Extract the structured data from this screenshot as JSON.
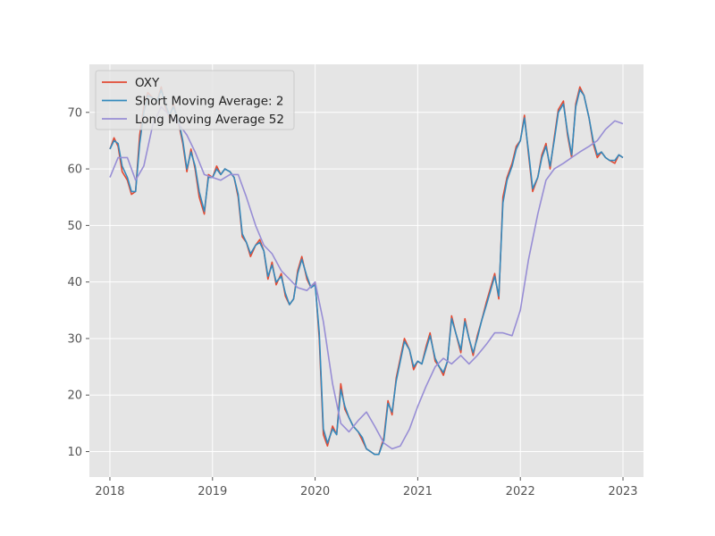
{
  "chart_data": {
    "type": "line",
    "title": "",
    "xlabel": "",
    "ylabel": "",
    "x_axis": "year",
    "xlim": [
      2017.8,
      2023.2
    ],
    "ylim": [
      5.5,
      78.5
    ],
    "x_ticks": [
      "2018",
      "2019",
      "2020",
      "2021",
      "2022",
      "2023"
    ],
    "y_ticks": [
      "10",
      "20",
      "30",
      "40",
      "50",
      "60",
      "70"
    ],
    "grid": true,
    "legend": "upper-left",
    "background": "#e5e5e5",
    "grid_color": "#ffffff",
    "series": [
      {
        "name": "OXY",
        "color": "#e24a33",
        "x": [
          2018.0,
          2018.04,
          2018.08,
          2018.12,
          2018.17,
          2018.21,
          2018.25,
          2018.29,
          2018.33,
          2018.37,
          2018.42,
          2018.46,
          2018.5,
          2018.54,
          2018.58,
          2018.62,
          2018.67,
          2018.71,
          2018.75,
          2018.79,
          2018.83,
          2018.87,
          2018.92,
          2018.96,
          2019.0,
          2019.04,
          2019.08,
          2019.12,
          2019.17,
          2019.21,
          2019.25,
          2019.29,
          2019.33,
          2019.37,
          2019.42,
          2019.46,
          2019.5,
          2019.54,
          2019.58,
          2019.62,
          2019.67,
          2019.71,
          2019.75,
          2019.79,
          2019.83,
          2019.87,
          2019.92,
          2019.96,
          2020.0,
          2020.04,
          2020.08,
          2020.12,
          2020.17,
          2020.21,
          2020.25,
          2020.29,
          2020.33,
          2020.37,
          2020.42,
          2020.46,
          2020.5,
          2020.54,
          2020.58,
          2020.62,
          2020.67,
          2020.71,
          2020.75,
          2020.79,
          2020.83,
          2020.87,
          2020.92,
          2020.96,
          2021.0,
          2021.04,
          2021.08,
          2021.12,
          2021.17,
          2021.21,
          2021.25,
          2021.29,
          2021.33,
          2021.37,
          2021.42,
          2021.46,
          2021.5,
          2021.54,
          2021.58,
          2021.62,
          2021.67,
          2021.71,
          2021.75,
          2021.79,
          2021.83,
          2021.87,
          2021.92,
          2021.96,
          2022.0,
          2022.04,
          2022.08,
          2022.12,
          2022.17,
          2022.21,
          2022.25,
          2022.29,
          2022.33,
          2022.37,
          2022.42,
          2022.46,
          2022.5,
          2022.54,
          2022.58,
          2022.62,
          2022.67,
          2022.71,
          2022.75,
          2022.79,
          2022.83,
          2022.87,
          2022.92,
          2022.96,
          2023.0
        ],
        "values": [
          63.5,
          65.5,
          64.0,
          59.5,
          58.0,
          55.5,
          56.0,
          66.0,
          71.0,
          73.5,
          72.5,
          72.0,
          74.5,
          71.0,
          69.0,
          71.5,
          68.0,
          64.5,
          59.5,
          63.5,
          60.0,
          55.0,
          52.0,
          59.0,
          58.5,
          60.5,
          59.0,
          60.0,
          59.5,
          58.5,
          55.0,
          48.0,
          47.0,
          44.5,
          46.5,
          47.5,
          45.5,
          40.5,
          43.5,
          39.5,
          41.5,
          37.5,
          36.0,
          37.0,
          42.0,
          44.5,
          40.5,
          39.0,
          40.0,
          30.0,
          13.0,
          11.0,
          14.5,
          13.0,
          22.0,
          17.5,
          16.0,
          14.5,
          13.5,
          12.0,
          10.5,
          10.0,
          9.5,
          9.5,
          12.5,
          19.0,
          16.5,
          23.0,
          26.5,
          30.0,
          28.0,
          24.5,
          26.0,
          25.5,
          28.5,
          31.0,
          26.0,
          25.0,
          23.5,
          26.0,
          34.0,
          31.0,
          27.5,
          33.5,
          30.0,
          27.0,
          30.5,
          33.0,
          36.5,
          39.0,
          41.5,
          37.0,
          55.0,
          58.5,
          61.0,
          64.0,
          65.0,
          69.5,
          62.5,
          56.0,
          58.5,
          62.5,
          64.5,
          60.0,
          65.5,
          70.5,
          72.0,
          66.0,
          62.0,
          71.5,
          74.5,
          73.0,
          69.0,
          64.5,
          62.0,
          63.0,
          62.0,
          61.5,
          61.0,
          62.5,
          62.0
        ]
      },
      {
        "name": "Short Moving Average: 2",
        "color": "#348abd",
        "x": [
          2018.0,
          2018.04,
          2018.08,
          2018.12,
          2018.17,
          2018.21,
          2018.25,
          2018.29,
          2018.33,
          2018.37,
          2018.42,
          2018.46,
          2018.5,
          2018.54,
          2018.58,
          2018.62,
          2018.67,
          2018.71,
          2018.75,
          2018.79,
          2018.83,
          2018.87,
          2018.92,
          2018.96,
          2019.0,
          2019.04,
          2019.08,
          2019.12,
          2019.17,
          2019.21,
          2019.25,
          2019.29,
          2019.33,
          2019.37,
          2019.42,
          2019.46,
          2019.5,
          2019.54,
          2019.58,
          2019.62,
          2019.67,
          2019.71,
          2019.75,
          2019.79,
          2019.83,
          2019.87,
          2019.92,
          2019.96,
          2020.0,
          2020.04,
          2020.08,
          2020.12,
          2020.17,
          2020.21,
          2020.25,
          2020.29,
          2020.33,
          2020.37,
          2020.42,
          2020.46,
          2020.5,
          2020.54,
          2020.58,
          2020.62,
          2020.67,
          2020.71,
          2020.75,
          2020.79,
          2020.83,
          2020.87,
          2020.92,
          2020.96,
          2021.0,
          2021.04,
          2021.08,
          2021.12,
          2021.17,
          2021.21,
          2021.25,
          2021.29,
          2021.33,
          2021.37,
          2021.42,
          2021.46,
          2021.5,
          2021.54,
          2021.58,
          2021.62,
          2021.67,
          2021.71,
          2021.75,
          2021.79,
          2021.83,
          2021.87,
          2021.92,
          2021.96,
          2022.0,
          2022.04,
          2022.08,
          2022.12,
          2022.17,
          2022.21,
          2022.25,
          2022.29,
          2022.33,
          2022.37,
          2022.42,
          2022.46,
          2022.5,
          2022.54,
          2022.58,
          2022.62,
          2022.67,
          2022.71,
          2022.75,
          2022.79,
          2022.83,
          2022.87,
          2022.92,
          2022.96,
          2023.0
        ],
        "values": [
          63.5,
          65.0,
          64.5,
          60.5,
          58.5,
          56.0,
          56.0,
          64.5,
          70.0,
          73.0,
          72.5,
          72.0,
          74.0,
          71.5,
          69.5,
          71.0,
          68.5,
          65.0,
          60.0,
          63.0,
          60.5,
          56.0,
          52.5,
          58.5,
          58.5,
          60.0,
          59.0,
          60.0,
          59.5,
          58.5,
          55.5,
          48.5,
          47.0,
          45.0,
          46.5,
          47.0,
          45.5,
          41.0,
          43.0,
          40.0,
          41.0,
          38.0,
          36.0,
          37.0,
          41.5,
          44.0,
          41.0,
          39.0,
          39.5,
          31.0,
          14.0,
          11.5,
          14.0,
          13.0,
          21.0,
          18.0,
          16.0,
          14.5,
          13.5,
          12.5,
          10.5,
          10.0,
          9.5,
          9.5,
          12.0,
          18.5,
          17.0,
          22.5,
          26.0,
          29.5,
          28.0,
          25.0,
          26.0,
          25.5,
          28.0,
          30.5,
          26.5,
          25.0,
          24.0,
          26.0,
          33.5,
          31.0,
          28.0,
          33.0,
          30.0,
          27.5,
          30.0,
          33.0,
          36.0,
          38.5,
          41.0,
          37.5,
          54.0,
          58.0,
          60.5,
          63.5,
          65.0,
          69.0,
          63.0,
          56.5,
          58.5,
          62.0,
          64.0,
          60.5,
          65.0,
          70.0,
          71.5,
          66.5,
          62.5,
          71.0,
          74.0,
          73.0,
          69.0,
          65.0,
          62.5,
          63.0,
          62.0,
          61.5,
          61.5,
          62.5,
          62.0
        ]
      },
      {
        "name": "Long Moving Average 52",
        "color": "#988ed5",
        "x": [
          2018.0,
          2018.08,
          2018.17,
          2018.25,
          2018.33,
          2018.42,
          2018.5,
          2018.58,
          2018.67,
          2018.75,
          2018.83,
          2018.92,
          2019.0,
          2019.08,
          2019.17,
          2019.25,
          2019.33,
          2019.42,
          2019.5,
          2019.58,
          2019.67,
          2019.75,
          2019.83,
          2019.92,
          2020.0,
          2020.08,
          2020.17,
          2020.25,
          2020.33,
          2020.42,
          2020.5,
          2020.58,
          2020.67,
          2020.75,
          2020.83,
          2020.92,
          2021.0,
          2021.08,
          2021.17,
          2021.25,
          2021.33,
          2021.42,
          2021.5,
          2021.58,
          2021.67,
          2021.75,
          2021.83,
          2021.92,
          2022.0,
          2022.08,
          2022.17,
          2022.25,
          2022.33,
          2022.42,
          2022.5,
          2022.58,
          2022.67,
          2022.75,
          2022.83,
          2022.92,
          2023.0
        ],
        "values": [
          58.5,
          62.0,
          62.0,
          58.0,
          60.5,
          68.0,
          71.0,
          69.5,
          68.0,
          66.0,
          63.0,
          59.0,
          58.5,
          58.0,
          59.0,
          59.0,
          55.0,
          50.0,
          46.5,
          45.0,
          42.0,
          40.5,
          39.0,
          38.5,
          40.0,
          33.0,
          22.0,
          15.0,
          13.5,
          15.5,
          17.0,
          14.5,
          11.5,
          10.5,
          11.0,
          14.0,
          18.0,
          21.5,
          25.0,
          26.5,
          25.5,
          27.0,
          25.5,
          27.0,
          29.0,
          31.0,
          31.0,
          30.5,
          35.0,
          44.0,
          52.0,
          58.0,
          60.0,
          61.0,
          62.0,
          63.0,
          64.0,
          65.0,
          67.0,
          68.5,
          68.0
        ]
      }
    ]
  }
}
